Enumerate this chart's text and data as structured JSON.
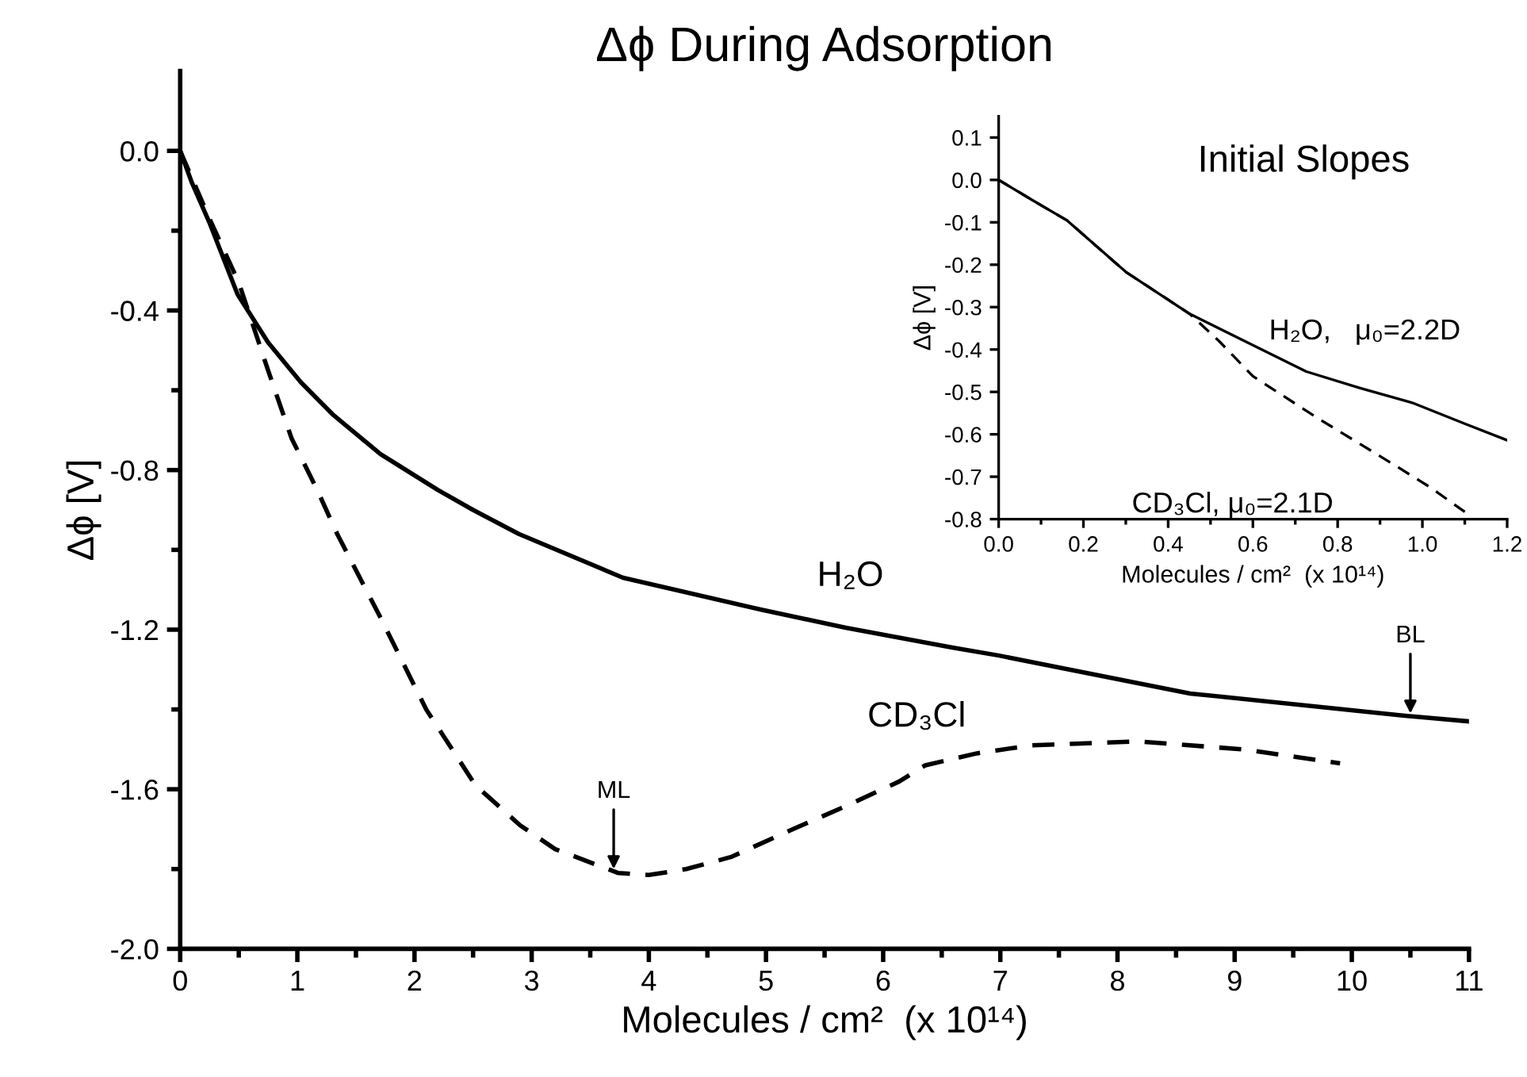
{
  "chart_data": [
    {
      "type": "line",
      "title": "Δϕ During Adsorption",
      "xlabel": "Molecules / cm²  (x 10¹⁴)",
      "ylabel": "Δϕ [V]",
      "xlim": [
        0,
        11
      ],
      "ylim": [
        -2.0,
        0.2
      ],
      "xticks": [
        0,
        {
          "value": 0.5,
          "label": null
        },
        1,
        {
          "value": 1.5,
          "label": null
        },
        2,
        {
          "value": 2.5,
          "label": null
        },
        3,
        {
          "value": 3.5,
          "label": null
        },
        4,
        {
          "value": 4.5,
          "label": null
        },
        5,
        {
          "value": 5.5,
          "label": null
        },
        6,
        {
          "value": 6.5,
          "label": null
        },
        7,
        {
          "value": 7.5,
          "label": null
        },
        8,
        {
          "value": 8.5,
          "label": null
        },
        9,
        {
          "value": 9.5,
          "label": null
        },
        10,
        {
          "value": 10.5,
          "label": null
        },
        11
      ],
      "yticks": [
        {
          "value": 0,
          "label": "0.0"
        },
        {
          "value": -0.2,
          "label": null
        },
        -0.4,
        {
          "value": -0.6,
          "label": null
        },
        -0.8,
        {
          "value": -1.0,
          "label": null
        },
        -1.2,
        {
          "value": -1.4,
          "label": null
        },
        -1.6,
        {
          "value": -1.8,
          "label": null
        },
        {
          "value": -2,
          "label": "-2.0"
        }
      ],
      "grid": false,
      "legend": false,
      "series": [
        {
          "name": "H₂O",
          "color": "#000000",
          "line_style": "solid",
          "x": [
            0,
            0.1,
            0.25,
            0.49,
            0.75,
            1.03,
            1.3,
            1.71,
            2.2,
            2.5,
            2.89,
            3.78,
            4.96,
            5.68,
            6.59,
            6.99,
            8.62,
            10.42,
            11
          ],
          "values": [
            0,
            -0.08,
            -0.18,
            -0.36,
            -0.48,
            -0.58,
            -0.66,
            -0.76,
            -0.85,
            -0.9,
            -0.96,
            -1.07,
            -1.15,
            -1.195,
            -1.245,
            -1.265,
            -1.36,
            -1.415,
            -1.43
          ]
        },
        {
          "name": "CD₃Cl",
          "color": "#000000",
          "line_style": "dashed",
          "x": [
            0,
            0.25,
            0.5,
            0.75,
            0.95,
            1.17,
            1.34,
            1.71,
            2.1,
            2.52,
            2.9,
            3.2,
            3.74,
            4.0,
            4.32,
            4.7,
            5.23,
            5.7,
            6.14,
            6.36,
            6.8,
            7.26,
            8.17,
            9.07,
            9.9
          ],
          "values": [
            0,
            -0.17,
            -0.33,
            -0.55,
            -0.72,
            -0.85,
            -0.96,
            -1.17,
            -1.4,
            -1.59,
            -1.69,
            -1.75,
            -1.81,
            -1.815,
            -1.8,
            -1.77,
            -1.7,
            -1.64,
            -1.58,
            -1.54,
            -1.51,
            -1.49,
            -1.48,
            -1.5,
            -1.535
          ]
        }
      ],
      "annotations": [
        {
          "text": "ML",
          "x": 3.7,
          "y": -1.8
        },
        {
          "text": "BL",
          "x": 10.5,
          "y": -1.41
        }
      ]
    },
    {
      "type": "line",
      "title": "Initial Slopes",
      "xlabel": "Molecules / cm²  (x 10¹⁴)",
      "ylabel": "Δϕ [V]",
      "xlim": [
        0,
        1.2
      ],
      "ylim": [
        -0.8,
        0.15
      ],
      "xticks": [
        {
          "value": 0,
          "label": "0.0"
        },
        {
          "value": 0.1,
          "label": null
        },
        0.2,
        {
          "value": 0.3,
          "label": null
        },
        0.4,
        {
          "value": 0.5,
          "label": null
        },
        0.6,
        {
          "value": 0.7,
          "label": null
        },
        0.8,
        {
          "value": 0.9,
          "label": null
        },
        {
          "value": 1,
          "label": "1.0"
        },
        {
          "value": 1.1,
          "label": null
        },
        1.2
      ],
      "yticks": [
        0.1,
        {
          "value": 0,
          "label": "0.0"
        },
        -0.1,
        -0.2,
        -0.3,
        -0.4,
        -0.5,
        -0.6,
        -0.7,
        -0.8
      ],
      "grid": false,
      "legend": false,
      "series": [
        {
          "name": "H₂O,   μ₀=2.2D",
          "color": "#000000",
          "line_style": "solid",
          "x": [
            0,
            0.08,
            0.162,
            0.3,
            0.451,
            0.6,
            0.726,
            0.85,
            0.977,
            1.1,
            1.2
          ],
          "values": [
            0,
            -0.048,
            -0.096,
            -0.217,
            -0.316,
            -0.39,
            -0.452,
            -0.49,
            -0.526,
            -0.575,
            -0.614
          ]
        },
        {
          "name": "CD₃Cl, μ₀=2.1D",
          "color": "#000000",
          "line_style": "dashed",
          "x": [
            0,
            0.08,
            0.162,
            0.3,
            0.451,
            0.52,
            0.6,
            0.75,
            0.94,
            1.02,
            1.1
          ],
          "values": [
            0,
            -0.048,
            -0.096,
            -0.217,
            -0.316,
            -0.38,
            -0.463,
            -0.56,
            -0.676,
            -0.726,
            -0.783
          ]
        }
      ]
    }
  ]
}
